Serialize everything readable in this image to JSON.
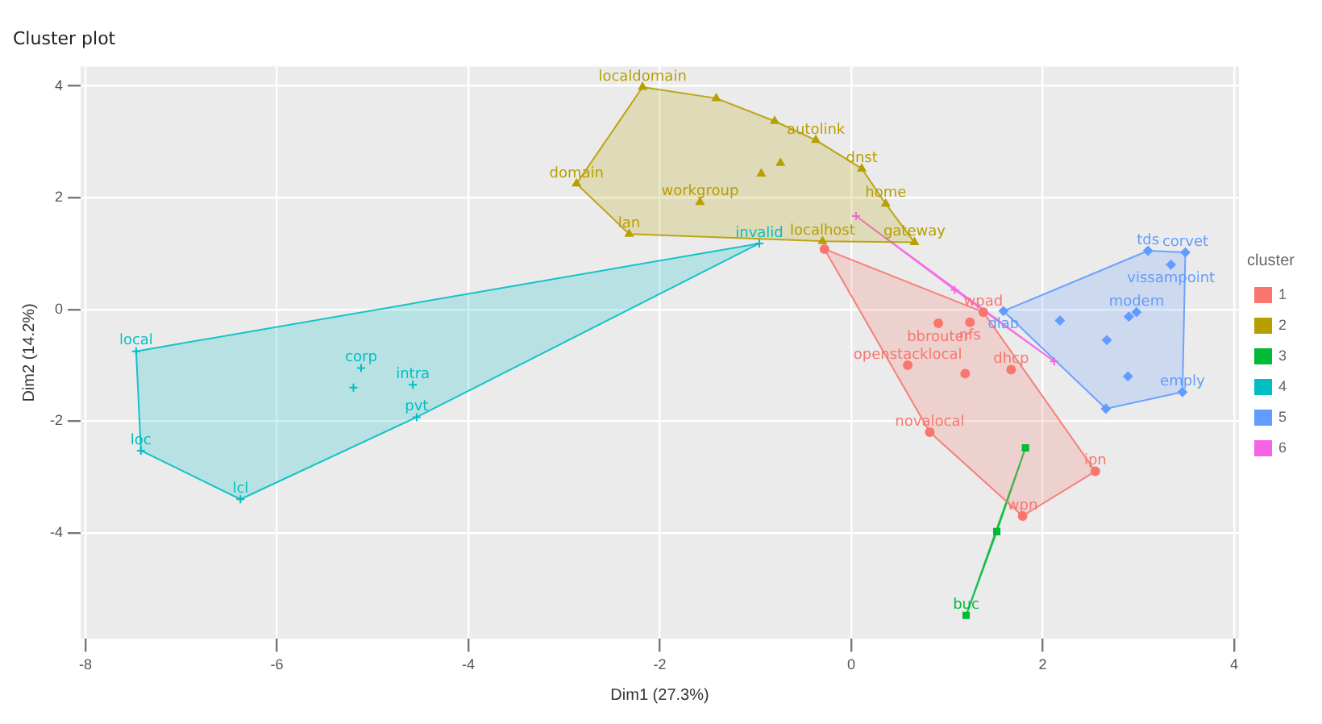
{
  "chart_data": {
    "type": "scatter",
    "title": "Cluster plot",
    "xlabel": "Dim1 (27.3%)",
    "ylabel": "Dim2 (14.2%)",
    "legend_title": "cluster",
    "legend": "right",
    "grid": true,
    "xlim": [
      -8.05,
      4.05
    ],
    "ylim": [
      -5.9,
      4.35
    ],
    "xticks": [
      -8,
      -6,
      -4,
      -2,
      0,
      2,
      4
    ],
    "yticks": [
      -4,
      -2,
      0,
      2,
      4
    ],
    "series": [
      {
        "name": "1",
        "color": "#f8766d",
        "marker": "circle",
        "x": [
          -0.28,
          1.38,
          0.91,
          1.24,
          0.59,
          1.19,
          1.67,
          0.82,
          2.55,
          1.79
        ],
        "values": [
          1.08,
          -0.05,
          -0.25,
          -0.23,
          -1.0,
          -1.15,
          -1.08,
          -2.2,
          -2.9,
          -3.7
        ]
      },
      {
        "name": "2",
        "color": "#b79f00",
        "marker": "triangle",
        "x": [
          -2.18,
          -1.41,
          -0.8,
          -0.37,
          0.11,
          0.36,
          0.66,
          -0.74,
          -0.94,
          -2.87,
          -1.58,
          -2.32,
          -0.3
        ],
        "values": [
          3.98,
          3.78,
          3.37,
          3.03,
          2.52,
          1.89,
          1.2,
          2.62,
          2.43,
          2.25,
          1.92,
          1.35,
          1.22
        ]
      },
      {
        "name": "3",
        "color": "#00ba38",
        "marker": "square",
        "x": [
          1.82,
          1.52,
          1.2
        ],
        "values": [
          -2.48,
          -3.98,
          -5.48
        ]
      },
      {
        "name": "4",
        "color": "#00bfc4",
        "marker": "cross",
        "x": [
          -7.47,
          -7.42,
          -6.38,
          -4.54,
          -4.58,
          -5.12,
          -5.2,
          -0.96
        ],
        "values": [
          -0.75,
          -2.53,
          -3.4,
          -1.93,
          -1.35,
          -1.05,
          -1.4,
          1.18
        ]
      },
      {
        "name": "5",
        "color": "#619cff",
        "marker": "diamond",
        "x": [
          1.59,
          2.18,
          2.98,
          2.9,
          2.67,
          2.89,
          3.46,
          2.66,
          3.1,
          3.34,
          3.49
        ],
        "values": [
          -0.03,
          -0.2,
          -0.05,
          -0.13,
          -0.55,
          -1.2,
          -1.48,
          -1.78,
          1.05,
          0.8,
          1.02
        ]
      },
      {
        "name": "6",
        "color": "#f564e3",
        "marker": "cross",
        "x": [
          0.05,
          1.08,
          2.12
        ],
        "values": [
          1.67,
          0.35,
          -0.93
        ]
      },
      {
        "type": "area",
        "color": "#f8766d",
        "x": [
          -0.28,
          1.38,
          2.55,
          1.79,
          0.82,
          -0.28
        ],
        "values": [
          1.08,
          -0.05,
          -2.9,
          -3.7,
          -2.2,
          1.08
        ]
      },
      {
        "type": "area",
        "color": "#b79f00",
        "x": [
          -2.18,
          -1.41,
          -0.8,
          -0.37,
          0.11,
          0.36,
          0.66,
          -0.3,
          -2.32,
          -2.87,
          -2.18
        ],
        "values": [
          3.98,
          3.78,
          3.37,
          3.03,
          2.52,
          1.89,
          1.2,
          1.22,
          1.35,
          2.25,
          3.98
        ]
      },
      {
        "type": "area",
        "color": "#00ba38",
        "x": [
          1.82,
          1.52,
          1.2,
          1.82
        ],
        "values": [
          -2.48,
          -3.98,
          -5.48,
          -2.48
        ]
      },
      {
        "type": "area",
        "color": "#00bfc4",
        "x": [
          -7.47,
          -0.96,
          -4.54,
          -6.38,
          -7.42,
          -7.47
        ],
        "values": [
          -0.75,
          1.18,
          -1.93,
          -3.4,
          -2.53,
          -0.75
        ]
      },
      {
        "type": "area",
        "color": "#619cff",
        "x": [
          1.59,
          3.1,
          3.49,
          3.46,
          2.66,
          1.59
        ],
        "values": [
          -0.03,
          1.05,
          1.02,
          -1.48,
          -1.78,
          -0.03
        ]
      },
      {
        "type": "area",
        "color": "#f564e3",
        "x": [
          0.05,
          1.08,
          2.12,
          0.05
        ],
        "values": [
          1.67,
          0.35,
          -0.93,
          1.67
        ]
      }
    ],
    "annotations": [
      {
        "text": "wpad",
        "x": 1.38,
        "y": -0.05
      },
      {
        "text": "bbrouter",
        "x": 0.91,
        "y": -0.25
      },
      {
        "text": "nfs",
        "x": 1.24,
        "y": -0.23
      },
      {
        "text": "openstacklocal",
        "x": 0.59,
        "y": -1.0
      },
      {
        "text": "dhcp",
        "x": 1.67,
        "y": -1.08
      },
      {
        "text": "novalocal",
        "x": 0.82,
        "y": -2.2
      },
      {
        "text": "ipn",
        "x": 2.55,
        "y": -2.9
      },
      {
        "text": "wpn",
        "x": 1.79,
        "y": -3.7
      },
      {
        "text": "localdomain",
        "x": -2.18,
        "y": 3.98
      },
      {
        "text": "autolink",
        "x": -0.37,
        "y": 3.03
      },
      {
        "text": "dnst",
        "x": 0.11,
        "y": 2.52
      },
      {
        "text": "home",
        "x": 0.36,
        "y": 1.89
      },
      {
        "text": "gateway",
        "x": 0.66,
        "y": 1.2
      },
      {
        "text": "domain",
        "x": -2.87,
        "y": 2.25
      },
      {
        "text": "workgroup",
        "x": -1.58,
        "y": 1.92
      },
      {
        "text": "lan",
        "x": -2.32,
        "y": 1.35
      },
      {
        "text": "localhost",
        "x": -0.3,
        "y": 1.22
      },
      {
        "text": "buc",
        "x": 1.2,
        "y": -5.48
      },
      {
        "text": "local",
        "x": -7.47,
        "y": -0.75
      },
      {
        "text": "loc",
        "x": -7.42,
        "y": -2.53
      },
      {
        "text": "lcl",
        "x": -6.38,
        "y": -3.4
      },
      {
        "text": "pvt",
        "x": -4.54,
        "y": -1.93
      },
      {
        "text": "intra",
        "x": -4.58,
        "y": -1.35
      },
      {
        "text": "corp",
        "x": -5.12,
        "y": -1.05
      },
      {
        "text": "invalid",
        "x": -0.96,
        "y": 1.18
      },
      {
        "text": "dlab",
        "x": 1.59,
        "y": -0.03
      },
      {
        "text": "modem",
        "x": 2.98,
        "y": -0.05
      },
      {
        "text": "emply",
        "x": 3.46,
        "y": -1.48
      },
      {
        "text": "tds",
        "x": 3.1,
        "y": 1.05
      },
      {
        "text": "corvet",
        "x": 3.49,
        "y": 1.02
      },
      {
        "text": "vissampoint",
        "x": 3.34,
        "y": 0.8
      }
    ]
  }
}
